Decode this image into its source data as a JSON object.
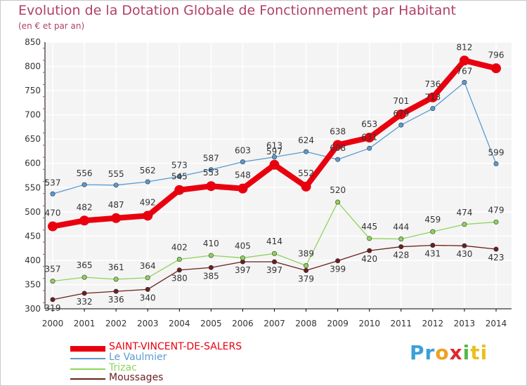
{
  "title": "Evolution de la Dotation Globale de Fonctionnement par Habitant",
  "subtitle": "(en € et par an)",
  "logo": {
    "parts": [
      "Pr",
      "o",
      "x",
      "i",
      "ti"
    ],
    "colors": [
      "#3aa0d8",
      "#f0a020",
      "#e0282e",
      "#55b848",
      "#e8c020"
    ]
  },
  "chart_data": {
    "type": "line",
    "title": "Evolution de la Dotation Globale de Fonctionnement par Habitant",
    "ylabel": "(en € et par an)",
    "xlabel": "",
    "x": [
      "2000",
      "2001",
      "2002",
      "2003",
      "2004",
      "2005",
      "2006",
      "2007",
      "2008",
      "2009",
      "2010",
      "2011",
      "2012",
      "2013",
      "2014"
    ],
    "ylim": [
      300,
      850
    ],
    "yticks": [
      300,
      350,
      400,
      450,
      500,
      550,
      600,
      650,
      700,
      750,
      800,
      850
    ],
    "grid": true,
    "series": [
      {
        "name": "SAINT-VINCENT-DE-SALERS",
        "color": "#e8000f",
        "values": [
          470,
          482,
          487,
          492,
          545,
          553,
          548,
          597,
          552,
          638,
          653,
          701,
          736,
          812,
          796
        ]
      },
      {
        "name": "Le Vaulmier",
        "color": "#5a9bd0",
        "values": [
          537,
          556,
          555,
          562,
          573,
          587,
          603,
          613,
          624,
          608,
          631,
          679,
          713,
          767,
          599
        ]
      },
      {
        "name": "Trizac",
        "color": "#8fd35a",
        "values": [
          357,
          365,
          361,
          364,
          402,
          410,
          405,
          414,
          389,
          520,
          445,
          444,
          459,
          474,
          479
        ]
      },
      {
        "name": "Moussages",
        "color": "#6b1f1f",
        "values": [
          319,
          332,
          336,
          340,
          380,
          385,
          397,
          397,
          379,
          399,
          420,
          428,
          431,
          430,
          423
        ]
      }
    ]
  }
}
